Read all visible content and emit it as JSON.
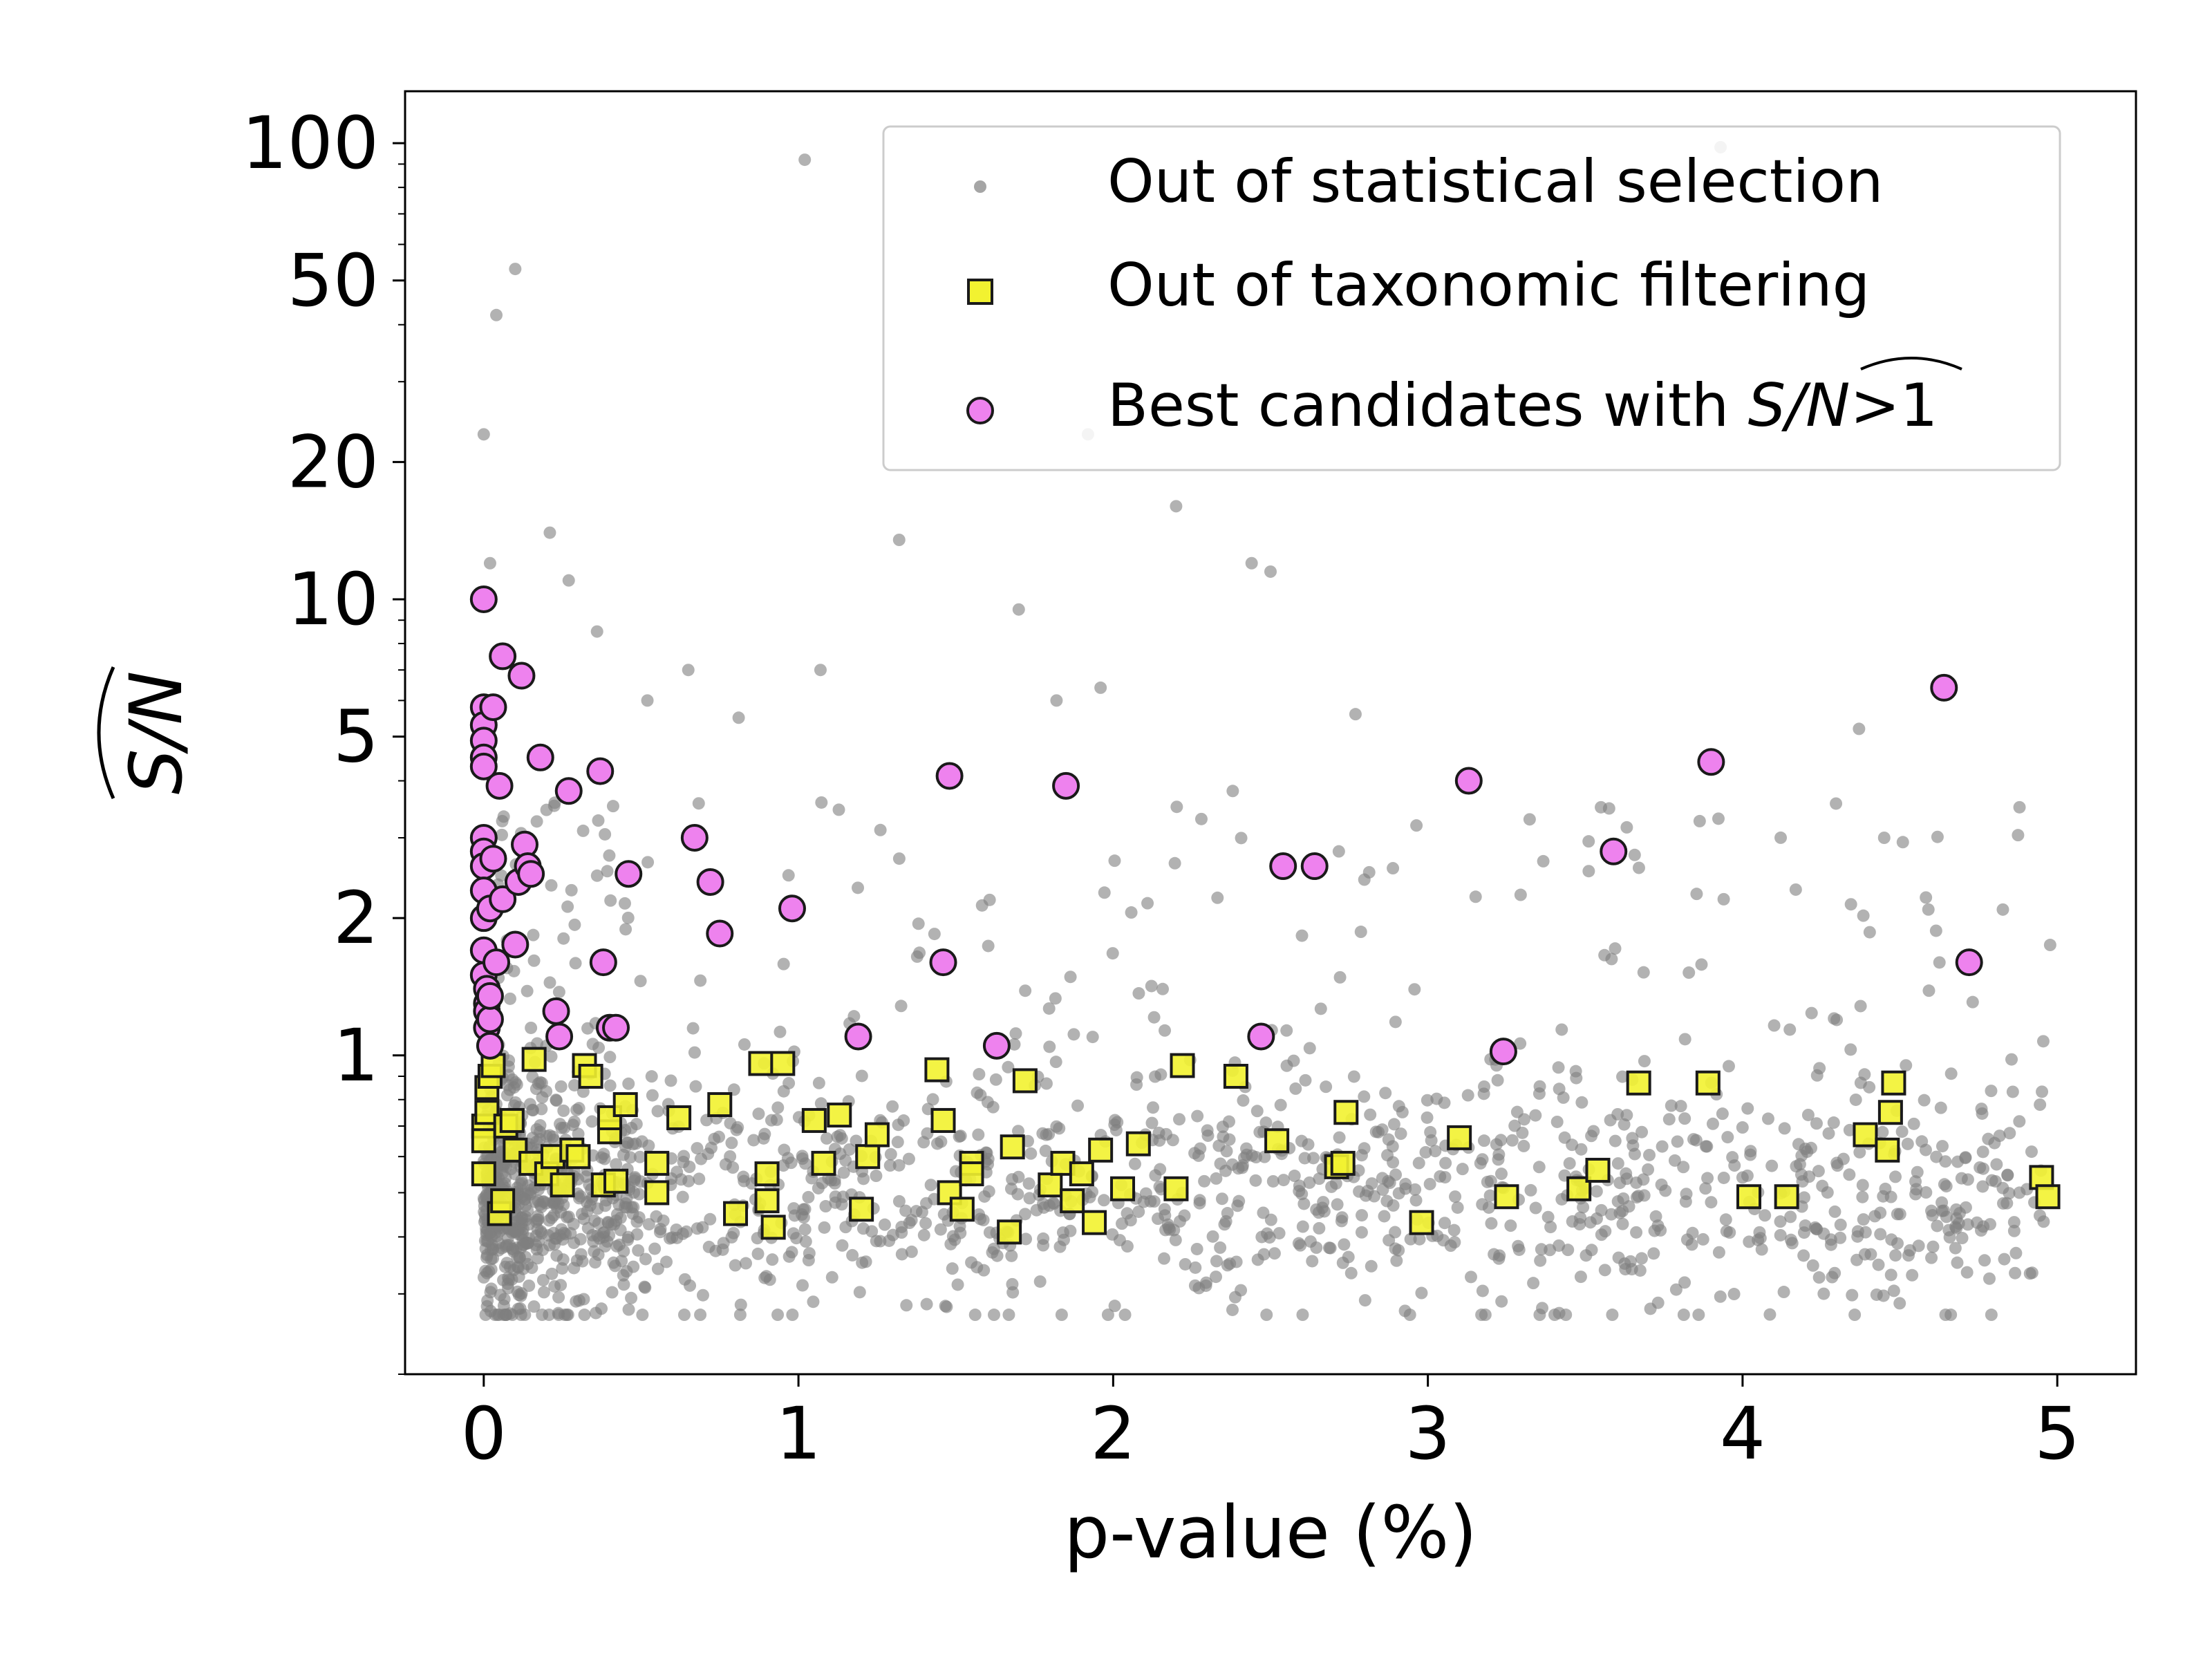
{
  "chart_data": {
    "type": "scatter",
    "xlabel": "p-value (%)",
    "ylabel": "S/N",
    "ylabel_hat": true,
    "yscale": "log",
    "xlim": [
      -0.25,
      5.25
    ],
    "ylim": [
      0.2,
      130
    ],
    "xticks": [
      {
        "value": 0,
        "label": "0"
      },
      {
        "value": 1,
        "label": "1"
      },
      {
        "value": 2,
        "label": "2"
      },
      {
        "value": 3,
        "label": "3"
      },
      {
        "value": 4,
        "label": "4"
      },
      {
        "value": 5,
        "label": "5"
      }
    ],
    "yticks": [
      {
        "value": 1,
        "label": "1"
      },
      {
        "value": 2,
        "label": "2"
      },
      {
        "value": 5,
        "label": "5"
      },
      {
        "value": 10,
        "label": "10"
      },
      {
        "value": 20,
        "label": "20"
      },
      {
        "value": 50,
        "label": "50"
      },
      {
        "value": 100,
        "label": "100"
      }
    ],
    "legend": {
      "position": "top-right",
      "entries": [
        {
          "key": "gray",
          "label": "Out of statistical selection"
        },
        {
          "key": "yellow",
          "label": "Out of taxonomic filtering"
        },
        {
          "key": "magenta",
          "label_prefix": "Best candidates with ",
          "label_sn": "S/N",
          "label_suffix": ">1"
        }
      ]
    },
    "colors": {
      "gray": "#7f7f7f",
      "yellow": "#f2f230",
      "magenta": "#ee82ee",
      "edge": "#1a1a1a"
    },
    "series": [
      {
        "name": "Out of statistical selection",
        "marker": "circle-small",
        "generated_count": 1800,
        "x": [
          1.02,
          3.93,
          0.1,
          0.04,
          0.0,
          2.2,
          1.92,
          1.32,
          2.44,
          2.5,
          1.7,
          0.21,
          0.27,
          0.02,
          0.36,
          1.07,
          1.82,
          1.96,
          2.77,
          4.37,
          4.88,
          4.45,
          2.38,
          3.94,
          0.65,
          0.81,
          0.52,
          3.55
        ],
        "y": [
          92,
          98,
          53,
          42,
          23,
          16,
          23,
          13.5,
          12,
          11.5,
          9.5,
          14,
          11,
          12,
          8.5,
          7,
          6,
          6.4,
          5.6,
          5.2,
          3.5,
          3,
          3.8,
          2.2,
          7,
          5.5,
          6,
          3.5
        ]
      },
      {
        "name": "Out of taxonomic filtering",
        "marker": "square",
        "x": [
          0.0,
          0.0,
          0.01,
          0.0,
          0.01,
          0.02,
          0.03,
          0.05,
          0.06,
          0.07,
          0.09,
          0.1,
          0.15,
          0.16,
          0.2,
          0.22,
          0.25,
          0.28,
          0.3,
          0.32,
          0.34,
          0.38,
          0.4,
          0.4,
          0.42,
          0.45,
          0.55,
          0.55,
          0.62,
          0.75,
          0.8,
          0.88,
          0.9,
          0.9,
          0.92,
          0.95,
          1.05,
          1.08,
          1.13,
          1.2,
          1.22,
          1.25,
          1.44,
          1.46,
          1.48,
          1.52,
          1.55,
          1.55,
          1.67,
          1.68,
          1.72,
          1.8,
          1.84,
          1.87,
          1.9,
          1.94,
          1.96,
          2.03,
          2.08,
          2.2,
          2.22,
          2.39,
          2.52,
          2.71,
          2.73,
          2.74,
          2.98,
          3.1,
          3.25,
          3.48,
          3.54,
          3.67,
          3.89,
          4.02,
          4.14,
          4.39,
          4.46,
          4.47,
          4.48,
          4.95,
          4.97
        ],
        "y": [
          0.55,
          0.7,
          0.75,
          0.65,
          0.85,
          0.9,
          0.95,
          0.45,
          0.48,
          0.7,
          0.72,
          0.62,
          0.58,
          0.98,
          0.55,
          0.6,
          0.52,
          0.62,
          0.6,
          0.95,
          0.9,
          0.52,
          0.68,
          0.73,
          0.53,
          0.78,
          0.58,
          0.5,
          0.73,
          0.78,
          0.45,
          0.96,
          0.55,
          0.48,
          0.42,
          0.96,
          0.72,
          0.58,
          0.74,
          0.46,
          0.6,
          0.67,
          0.93,
          0.72,
          0.5,
          0.46,
          0.58,
          0.55,
          0.41,
          0.63,
          0.88,
          0.52,
          0.58,
          0.48,
          0.55,
          0.43,
          0.62,
          0.51,
          0.64,
          0.51,
          0.95,
          0.9,
          0.65,
          0.57,
          0.58,
          0.75,
          0.43,
          0.66,
          0.49,
          0.51,
          0.56,
          0.87,
          0.87,
          0.49,
          0.49,
          0.67,
          0.62,
          0.75,
          0.87,
          0.54,
          0.49
        ]
      },
      {
        "name": "Best candidates with S/N>1",
        "marker": "circle",
        "x": [
          0.0,
          0.0,
          0.0,
          0.0,
          0.0,
          0.0,
          0.0,
          0.0,
          0.0,
          0.0,
          0.0,
          0.0,
          0.0,
          0.01,
          0.01,
          0.01,
          0.01,
          0.02,
          0.02,
          0.02,
          0.02,
          0.03,
          0.03,
          0.04,
          0.05,
          0.06,
          0.06,
          0.1,
          0.11,
          0.12,
          0.13,
          0.14,
          0.15,
          0.18,
          0.23,
          0.24,
          0.27,
          0.37,
          0.38,
          0.4,
          0.42,
          0.46,
          0.67,
          0.72,
          0.75,
          0.98,
          1.19,
          1.46,
          1.48,
          1.63,
          1.85,
          2.47,
          2.54,
          2.64,
          3.13,
          3.24,
          3.59,
          3.9,
          4.64,
          4.72
        ],
        "y": [
          10.0,
          5.8,
          5.3,
          4.9,
          4.5,
          4.3,
          3.0,
          2.8,
          2.6,
          2.3,
          2.0,
          1.7,
          1.5,
          1.4,
          1.3,
          1.25,
          1.15,
          1.05,
          1.2,
          1.35,
          2.1,
          2.7,
          5.8,
          1.6,
          3.9,
          2.2,
          7.5,
          1.75,
          2.4,
          6.8,
          2.9,
          2.6,
          2.5,
          4.5,
          1.25,
          1.1,
          3.8,
          4.2,
          1.6,
          1.15,
          1.15,
          2.5,
          3.0,
          2.4,
          1.85,
          2.1,
          1.1,
          1.6,
          4.1,
          1.05,
          3.9,
          1.1,
          2.6,
          2.6,
          4.0,
          1.02,
          2.8,
          4.4,
          6.4,
          1.6
        ]
      }
    ]
  }
}
